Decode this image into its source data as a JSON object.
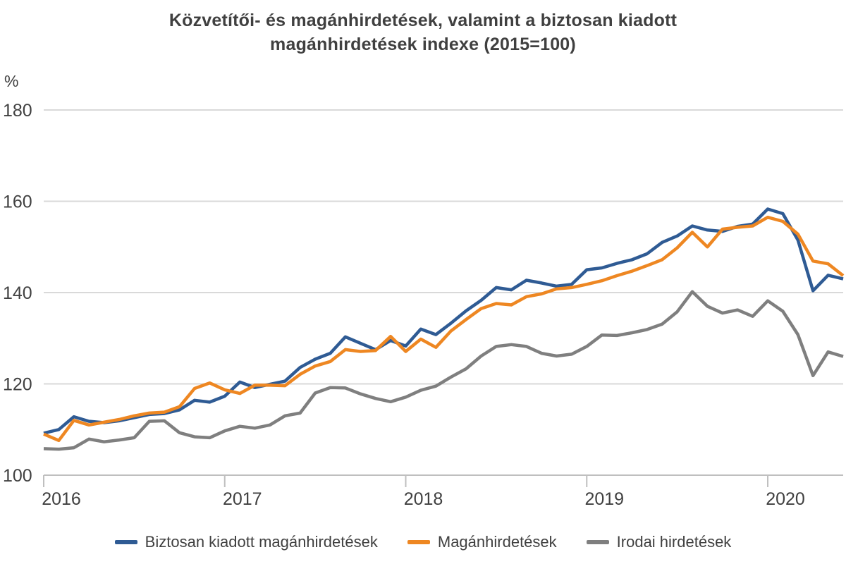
{
  "chart_data": {
    "type": "line",
    "title": "Közvetítői- és magánhirdetések, valamint a biztosan kiadott magánhirdetések indexe (2015=100)",
    "title_line1": "Közvetítői- és magánhirdetések, valamint a biztosan kiadott",
    "title_line2": "magánhirdetések indexe (2015=100)",
    "y_unit_label": "%",
    "y_ticks": [
      100,
      120,
      140,
      160,
      180
    ],
    "ylim": [
      100,
      185
    ],
    "x_tick_labels": [
      "2016",
      "2017",
      "2018",
      "2019",
      "2020"
    ],
    "x_tick_month_indices": [
      0,
      12,
      24,
      36,
      48
    ],
    "x_start": "2016-01",
    "x_end": "2020-06",
    "x_frequency": "monthly",
    "grid": "horizontal-only",
    "legend_position": "bottom",
    "text_color": "#404040",
    "gridline_color": "#d9d9d9",
    "axis_color": "#bfbfbf",
    "background_color": "#ffffff",
    "series": [
      {
        "name": "Biztosan kiadott magánhirdetések",
        "color": "#2F5B94",
        "values": [
          109.2,
          110.0,
          112.8,
          111.8,
          111.5,
          111.9,
          112.6,
          113.3,
          113.5,
          114.3,
          116.4,
          116.0,
          117.3,
          120.4,
          119.2,
          119.9,
          120.6,
          123.6,
          125.4,
          126.7,
          130.3,
          128.9,
          127.5,
          129.5,
          128.3,
          132.0,
          130.8,
          133.3,
          136.0,
          138.3,
          141.1,
          140.6,
          142.7,
          142.1,
          141.4,
          141.8,
          145.0,
          145.4,
          146.4,
          147.2,
          148.5,
          151.0,
          152.4,
          154.6,
          153.7,
          153.4,
          154.5,
          155.0,
          158.3,
          157.3,
          151.5,
          140.4,
          143.8,
          143.0
        ]
      },
      {
        "name": "Magánhirdetések",
        "color": "#EE8722",
        "values": [
          109.0,
          107.6,
          112.0,
          111.0,
          111.6,
          112.2,
          113.0,
          113.6,
          113.8,
          115.0,
          119.0,
          120.2,
          118.7,
          117.9,
          119.7,
          119.7,
          119.6,
          122.1,
          123.9,
          124.9,
          127.5,
          127.1,
          127.3,
          130.4,
          127.1,
          129.8,
          128.0,
          131.6,
          134.1,
          136.5,
          137.6,
          137.3,
          139.1,
          139.7,
          140.8,
          141.1,
          141.8,
          142.6,
          143.7,
          144.7,
          145.9,
          147.2,
          149.8,
          153.2,
          150.0,
          153.9,
          154.3,
          154.6,
          156.5,
          155.6,
          152.8,
          146.9,
          146.3,
          143.7
        ]
      },
      {
        "name": "Irodai hirdetések",
        "color": "#7F7F7F",
        "values": [
          105.8,
          105.7,
          106.0,
          107.9,
          107.3,
          107.7,
          108.2,
          111.8,
          111.9,
          109.3,
          108.4,
          108.2,
          109.7,
          110.7,
          110.3,
          111.0,
          113.0,
          113.6,
          118.0,
          119.2,
          119.1,
          117.8,
          116.8,
          116.1,
          117.1,
          118.6,
          119.5,
          121.5,
          123.3,
          126.1,
          128.2,
          128.6,
          128.2,
          126.7,
          126.1,
          126.5,
          128.2,
          130.7,
          130.6,
          131.2,
          131.9,
          133.1,
          135.8,
          140.2,
          137.0,
          135.5,
          136.2,
          134.8,
          138.2,
          135.9,
          130.8,
          121.8,
          127.0,
          126.0
        ]
      }
    ]
  }
}
